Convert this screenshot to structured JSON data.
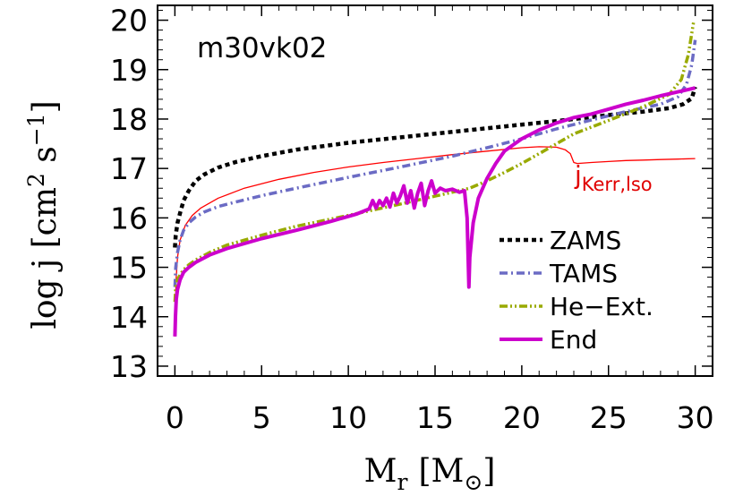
{
  "chart_data": {
    "type": "line",
    "model_label": "m30vk02",
    "xlabel": {
      "main": "M",
      "sub": "r",
      "unit_open": "[M",
      "unit_sub": "⊙",
      "unit_close": "]"
    },
    "ylabel": {
      "main": "log j [cm",
      "sup1": "2",
      "mid": " s",
      "sup2": "−1",
      "close": "]"
    },
    "xlim": [
      -1,
      31
    ],
    "ylim": [
      12.8,
      20.3
    ],
    "xticks": [
      0,
      5,
      10,
      15,
      20,
      25,
      30
    ],
    "yticks": [
      13,
      14,
      15,
      16,
      17,
      18,
      19,
      20
    ],
    "xtick_labels": [
      "0",
      "5",
      "10",
      "15",
      "20",
      "25",
      "30"
    ],
    "ytick_labels": [
      "13",
      "14",
      "15",
      "16",
      "17",
      "18",
      "19",
      "20"
    ],
    "legend_position": "lower-right",
    "series": [
      {
        "name": "ZAMS",
        "color": "#000000",
        "style": "dotted",
        "x": [
          0,
          0.05,
          0.15,
          0.3,
          0.5,
          0.8,
          1.2,
          1.7,
          2.5,
          3.5,
          5,
          7,
          10,
          13,
          16,
          19,
          22,
          25,
          27,
          28.5,
          29.3,
          29.8,
          30.0
        ],
        "y": [
          15.4,
          15.65,
          15.9,
          16.1,
          16.35,
          16.55,
          16.75,
          16.88,
          17.02,
          17.13,
          17.25,
          17.38,
          17.52,
          17.63,
          17.74,
          17.85,
          17.96,
          18.08,
          18.15,
          18.22,
          18.3,
          18.42,
          18.65
        ]
      },
      {
        "name": "TAMS",
        "color": "#6b6bc4",
        "style": "dash-dot",
        "x": [
          0,
          0.05,
          0.15,
          0.3,
          0.5,
          0.8,
          1.2,
          1.7,
          2.5,
          3.5,
          5,
          7,
          10,
          13,
          16,
          18,
          20,
          22,
          24,
          26,
          28,
          29,
          29.5,
          29.8,
          30.0
        ],
        "y": [
          14.6,
          15.0,
          15.3,
          15.55,
          15.75,
          15.9,
          16.02,
          16.12,
          16.23,
          16.32,
          16.45,
          16.6,
          16.82,
          17.03,
          17.25,
          17.42,
          17.6,
          17.8,
          17.98,
          18.15,
          18.3,
          18.45,
          18.7,
          19.1,
          19.6
        ]
      },
      {
        "name": "He−Ext.",
        "color": "#99aa00",
        "style": "dash-dot-dot",
        "x": [
          0,
          0.05,
          0.15,
          0.3,
          0.5,
          0.8,
          1.2,
          2,
          3,
          5,
          7,
          10,
          13,
          15,
          17,
          18,
          19,
          20,
          21,
          22,
          23,
          25,
          27,
          28.5,
          29.2,
          29.6,
          29.9
        ],
        "y": [
          14.3,
          14.6,
          14.75,
          14.85,
          14.95,
          15.05,
          15.15,
          15.3,
          15.45,
          15.65,
          15.83,
          16.05,
          16.28,
          16.44,
          16.6,
          16.75,
          16.92,
          17.1,
          17.3,
          17.5,
          17.7,
          17.97,
          18.25,
          18.5,
          18.8,
          19.3,
          19.95
        ]
      },
      {
        "name": "End",
        "color": "#cc00cc",
        "style": "solid",
        "x": [
          0,
          0.03,
          0.08,
          0.15,
          0.3,
          0.5,
          0.8,
          1.2,
          2,
          3,
          5,
          7,
          9,
          10.5,
          11.2,
          11.4,
          11.6,
          11.8,
          12.0,
          12.2,
          12.4,
          12.6,
          12.8,
          13.0,
          13.2,
          13.4,
          13.6,
          13.8,
          14.0,
          14.2,
          14.4,
          14.6,
          14.8,
          15.0,
          15.3,
          15.6,
          16.0,
          16.4,
          16.7,
          16.85,
          16.95,
          17.0,
          17.2,
          17.5,
          18,
          18.5,
          19,
          20,
          21,
          22,
          23,
          24,
          25,
          26,
          27,
          28,
          29,
          30
        ],
        "y": [
          13.6,
          14.0,
          14.35,
          14.55,
          14.75,
          14.9,
          15.0,
          15.1,
          15.25,
          15.38,
          15.58,
          15.75,
          15.93,
          16.08,
          16.18,
          16.35,
          16.2,
          16.35,
          16.25,
          16.4,
          16.22,
          16.5,
          16.3,
          16.45,
          16.65,
          16.3,
          16.55,
          16.2,
          16.5,
          16.7,
          16.25,
          16.55,
          16.75,
          16.5,
          16.6,
          16.55,
          16.58,
          16.52,
          16.55,
          16.0,
          14.6,
          15.2,
          15.9,
          16.4,
          16.8,
          17.1,
          17.35,
          17.6,
          17.78,
          17.92,
          18.03,
          18.1,
          18.2,
          18.3,
          18.38,
          18.47,
          18.55,
          18.63
        ]
      },
      {
        "name": "j_Kerr,lso",
        "color": "#ff0000",
        "style": "thin",
        "x": [
          0,
          0.03,
          0.08,
          0.15,
          0.3,
          0.6,
          1,
          1.5,
          2.5,
          4,
          6,
          8,
          10,
          12,
          14,
          16,
          18,
          20,
          21,
          22,
          22.5,
          22.8,
          23.0,
          23.2,
          24,
          25,
          26,
          27,
          28,
          29,
          30
        ],
        "y": [
          13.6,
          14.3,
          14.8,
          15.2,
          15.55,
          15.85,
          16.05,
          16.2,
          16.4,
          16.6,
          16.78,
          16.92,
          17.03,
          17.12,
          17.2,
          17.28,
          17.35,
          17.42,
          17.44,
          17.43,
          17.38,
          17.3,
          17.12,
          17.1,
          17.12,
          17.14,
          17.16,
          17.17,
          17.18,
          17.19,
          17.2
        ]
      }
    ],
    "legend_entries": [
      {
        "label": "ZAMS",
        "color": "#000000",
        "style": "dotted"
      },
      {
        "label": "TAMS",
        "color": "#6b6bc4",
        "style": "dash-dot"
      },
      {
        "label": "He−Ext.",
        "color": "#99aa00",
        "style": "dash-dot-dot"
      },
      {
        "label": "End",
        "color": "#cc00cc",
        "style": "solid"
      }
    ],
    "annotation": {
      "text": "j",
      "sub": "Kerr,lso",
      "color": "#e00000"
    }
  }
}
